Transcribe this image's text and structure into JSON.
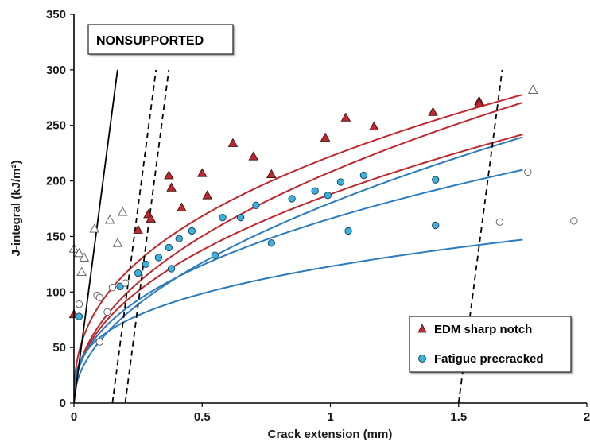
{
  "chart_data": {
    "type": "scatter",
    "xlabel": "Crack extension (mm)",
    "ylabel": "J-integral (kJ/m²)",
    "xlim": [
      0,
      2
    ],
    "ylim": [
      0,
      350
    ],
    "x_ticks": [
      "0",
      "0.5",
      "1",
      "1.5",
      "2"
    ],
    "y_ticks": [
      "0",
      "50",
      "100",
      "150",
      "200",
      "250",
      "300",
      "350"
    ],
    "annotation": "NONSUPPORTED",
    "legend_position": "bottom-right",
    "grid": false,
    "colors": {
      "edm": "#c0282d",
      "fatigue": "#2b7bbd",
      "fatigue_fill": "#39b2e0",
      "construction": "#000000"
    },
    "series": [
      {
        "name": "EDM sharp notch",
        "marker": "triangle",
        "points": [
          [
            0,
            80
          ],
          [
            0.29,
            170
          ],
          [
            0.37,
            205
          ],
          [
            0.5,
            207
          ],
          [
            0.62,
            234
          ],
          [
            0.7,
            222
          ],
          [
            1.06,
            257
          ],
          [
            1.17,
            249
          ],
          [
            1.4,
            262
          ],
          [
            1.58,
            272
          ],
          [
            0.25,
            156
          ],
          [
            0.3,
            166
          ],
          [
            0.38,
            194
          ],
          [
            0.42,
            176
          ],
          [
            0.52,
            187
          ],
          [
            0.77,
            206
          ],
          [
            0.98,
            239
          ],
          [
            1.58,
            270
          ]
        ]
      },
      {
        "name": "Fatigue precracked",
        "marker": "circle",
        "points": [
          [
            0.02,
            78
          ],
          [
            0.18,
            105
          ],
          [
            0.25,
            117
          ],
          [
            0.28,
            125
          ],
          [
            0.33,
            131
          ],
          [
            0.37,
            140
          ],
          [
            0.41,
            148
          ],
          [
            0.46,
            155
          ],
          [
            0.58,
            167
          ],
          [
            0.65,
            167
          ],
          [
            0.71,
            178
          ],
          [
            0.85,
            184
          ],
          [
            0.94,
            191
          ],
          [
            0.99,
            187
          ],
          [
            1.04,
            199
          ],
          [
            1.13,
            205
          ],
          [
            1.41,
            201
          ],
          [
            0.38,
            121
          ],
          [
            0.55,
            133
          ],
          [
            0.77,
            144
          ],
          [
            1.07,
            155
          ],
          [
            1.41,
            160
          ]
        ]
      },
      {
        "name": "",
        "marker": "open-triangle",
        "points": [
          [
            0,
            139
          ],
          [
            0.02,
            135
          ],
          [
            0.03,
            118
          ],
          [
            0.04,
            131
          ],
          [
            0.08,
            157
          ],
          [
            0.14,
            165
          ],
          [
            0.17,
            144
          ],
          [
            0.19,
            172
          ],
          [
            1.79,
            282
          ]
        ]
      },
      {
        "name": "",
        "marker": "open-circle",
        "points": [
          [
            0.02,
            89
          ],
          [
            0.09,
            97
          ],
          [
            0.1,
            95
          ],
          [
            0.1,
            55
          ],
          [
            0.13,
            82
          ],
          [
            0.15,
            104
          ],
          [
            0.2,
            108
          ],
          [
            1.66,
            163
          ],
          [
            1.77,
            208
          ],
          [
            1.95,
            164
          ]
        ]
      }
    ],
    "fit_curves": [
      {
        "series": "EDM sharp notch",
        "C": 222,
        "m": 0.4
      },
      {
        "series": "EDM sharp notch",
        "C": 208,
        "m": 0.47
      },
      {
        "series": "EDM sharp notch",
        "C": 188,
        "m": 0.45
      },
      {
        "series": "Fatigue precracked",
        "C": 180,
        "m": 0.51
      },
      {
        "series": "Fatigue precracked",
        "C": 166,
        "m": 0.42
      },
      {
        "series": "Fatigue precracked",
        "C": 123,
        "m": 0.32
      }
    ],
    "construction_lines": [
      {
        "style": "solid",
        "points": [
          [
            0,
            0
          ],
          [
            0.17,
            300
          ]
        ]
      },
      {
        "style": "dashed",
        "points": [
          [
            0.15,
            0
          ],
          [
            0.32,
            300
          ]
        ]
      },
      {
        "style": "dashed",
        "points": [
          [
            0.2,
            0
          ],
          [
            0.37,
            300
          ]
        ]
      },
      {
        "style": "dashed",
        "points": [
          [
            1.5,
            0
          ],
          [
            1.67,
            300
          ]
        ]
      }
    ]
  }
}
